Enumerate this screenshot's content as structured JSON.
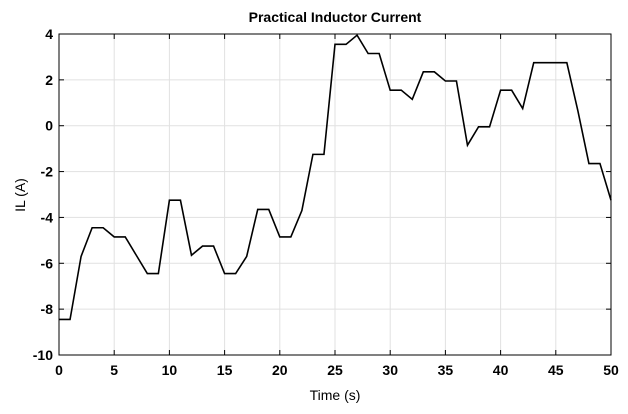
{
  "chart_data": {
    "type": "line",
    "title": "Practical Inductor Current",
    "xlabel": "Time (s)",
    "ylabel": "IL (A)",
    "xlim": [
      0,
      50
    ],
    "ylim": [
      -10,
      4
    ],
    "xticks": [
      0,
      5,
      10,
      15,
      20,
      25,
      30,
      35,
      40,
      45,
      50
    ],
    "yticks": [
      -10,
      -8,
      -6,
      -4,
      -2,
      0,
      2,
      4
    ],
    "grid": true,
    "line_color": "#000000",
    "series": [
      {
        "x": [
          0,
          1,
          2,
          3,
          4,
          5,
          6,
          7,
          8,
          9,
          10,
          11,
          12,
          13,
          14,
          15,
          16,
          17,
          18,
          19,
          20,
          21,
          22,
          23,
          24,
          25,
          26,
          27,
          28,
          29,
          30,
          31,
          32,
          33,
          34,
          35,
          36,
          37,
          38,
          39,
          40,
          41,
          42,
          43,
          44,
          45,
          46,
          47,
          48,
          49,
          50
        ],
        "values": [
          -8.45,
          -8.45,
          -5.7,
          -4.45,
          -4.45,
          -4.85,
          -4.85,
          -5.65,
          -6.45,
          -6.45,
          -3.25,
          -3.25,
          -5.65,
          -5.25,
          -5.25,
          -6.45,
          -6.45,
          -5.7,
          -3.65,
          -3.65,
          -4.85,
          -4.85,
          -3.7,
          -1.25,
          -1.25,
          3.55,
          3.55,
          3.95,
          3.15,
          3.15,
          1.55,
          1.55,
          1.15,
          2.35,
          2.35,
          1.95,
          1.95,
          -0.85,
          -0.05,
          -0.05,
          1.55,
          1.55,
          0.75,
          2.75,
          2.75,
          2.75,
          2.75,
          0.65,
          -1.65,
          -1.65,
          -3.25
        ]
      }
    ]
  }
}
